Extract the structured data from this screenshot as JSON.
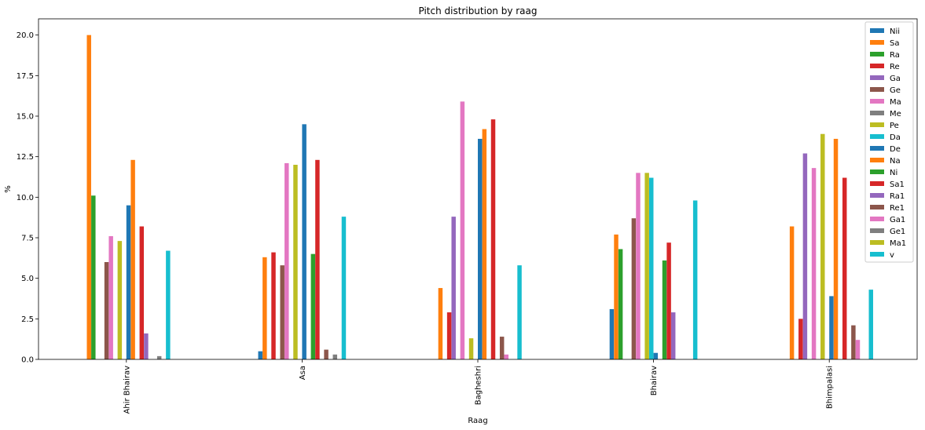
{
  "chart_data": {
    "type": "bar",
    "title": "Pitch distribution by raag",
    "xlabel": "Raag",
    "ylabel": "%",
    "ylim": [
      0,
      21
    ],
    "yticks": [
      "0.0",
      "2.5",
      "5.0",
      "7.5",
      "10.0",
      "12.5",
      "15.0",
      "17.5",
      "20.0"
    ],
    "categories": [
      "Ahir Bhairav",
      "Asa",
      "Bagheshri",
      "Bhairav",
      "Bhimpalasi"
    ],
    "legend_position": "top-right",
    "series": [
      {
        "name": "Nii",
        "color": "#1f77b4",
        "values": [
          0,
          0.5,
          0,
          3.1,
          0
        ]
      },
      {
        "name": "Sa",
        "color": "#ff7f0e",
        "values": [
          20.0,
          6.3,
          4.4,
          7.7,
          8.2
        ]
      },
      {
        "name": "Ra",
        "color": "#2ca02c",
        "values": [
          10.1,
          0,
          0,
          6.8,
          0
        ]
      },
      {
        "name": "Re",
        "color": "#d62728",
        "values": [
          0,
          6.6,
          2.9,
          0,
          2.5
        ]
      },
      {
        "name": "Ga",
        "color": "#9467bd",
        "values": [
          0,
          0,
          8.8,
          0,
          12.7
        ]
      },
      {
        "name": "Ge",
        "color": "#8c564b",
        "values": [
          6.0,
          5.8,
          0,
          8.7,
          0
        ]
      },
      {
        "name": "Ma",
        "color": "#e377c2",
        "values": [
          7.6,
          12.1,
          15.9,
          11.5,
          11.8
        ]
      },
      {
        "name": "Me",
        "color": "#7f7f7f",
        "values": [
          0,
          0,
          0,
          0,
          0
        ]
      },
      {
        "name": "Pe",
        "color": "#bcbd22",
        "values": [
          7.3,
          12.0,
          1.3,
          11.5,
          13.9
        ]
      },
      {
        "name": "Da",
        "color": "#17becf",
        "values": [
          0,
          0,
          0,
          11.2,
          0
        ]
      },
      {
        "name": "De",
        "color": "#1f77b4",
        "values": [
          9.5,
          14.5,
          13.6,
          0.4,
          3.9
        ]
      },
      {
        "name": "Na",
        "color": "#ff7f0e",
        "values": [
          12.3,
          0,
          14.2,
          0,
          13.6
        ]
      },
      {
        "name": "Ni",
        "color": "#2ca02c",
        "values": [
          0,
          6.5,
          0,
          6.1,
          0
        ]
      },
      {
        "name": "Sa1",
        "color": "#d62728",
        "values": [
          8.2,
          12.3,
          14.8,
          7.2,
          11.2
        ]
      },
      {
        "name": "Ra1",
        "color": "#9467bd",
        "values": [
          1.6,
          0,
          0,
          2.9,
          0
        ]
      },
      {
        "name": "Re1",
        "color": "#8c564b",
        "values": [
          0,
          0.6,
          1.4,
          0,
          2.1
        ]
      },
      {
        "name": "Ga1",
        "color": "#e377c2",
        "values": [
          0,
          0,
          0.3,
          0,
          1.2
        ]
      },
      {
        "name": "Ge1",
        "color": "#7f7f7f",
        "values": [
          0.2,
          0.3,
          0,
          0,
          0
        ]
      },
      {
        "name": "Ma1",
        "color": "#bcbd22",
        "values": [
          0,
          0,
          0,
          0,
          0
        ]
      },
      {
        "name": "v",
        "color": "#17becf",
        "values": [
          6.7,
          8.8,
          5.8,
          9.8,
          4.3
        ]
      }
    ]
  }
}
